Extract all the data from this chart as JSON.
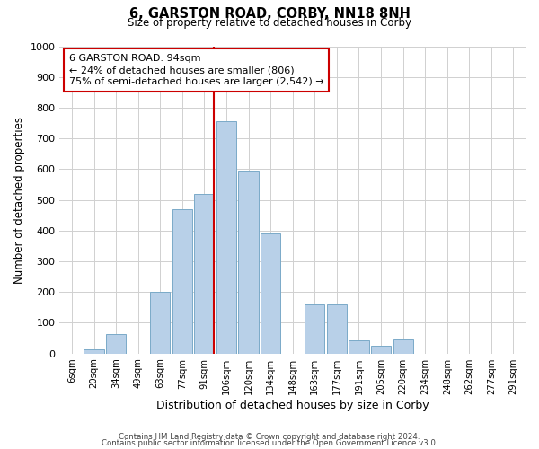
{
  "title": "6, GARSTON ROAD, CORBY, NN18 8NH",
  "subtitle": "Size of property relative to detached houses in Corby",
  "xlabel": "Distribution of detached houses by size in Corby",
  "ylabel": "Number of detached properties",
  "bar_labels": [
    "6sqm",
    "20sqm",
    "34sqm",
    "49sqm",
    "63sqm",
    "77sqm",
    "91sqm",
    "106sqm",
    "120sqm",
    "134sqm",
    "148sqm",
    "163sqm",
    "177sqm",
    "191sqm",
    "205sqm",
    "220sqm",
    "234sqm",
    "248sqm",
    "262sqm",
    "277sqm",
    "291sqm"
  ],
  "bar_values": [
    0,
    15,
    63,
    0,
    200,
    470,
    520,
    755,
    595,
    390,
    0,
    160,
    160,
    42,
    25,
    45,
    0,
    0,
    0,
    0,
    0
  ],
  "bar_color": "#b8d0e8",
  "bar_edge_color": "#7aaac8",
  "vline_color": "#cc0000",
  "annotation_line1": "6 GARSTON ROAD: 94sqm",
  "annotation_line2": "← 24% of detached houses are smaller (806)",
  "annotation_line3": "75% of semi-detached houses are larger (2,542) →",
  "annotation_box_edge": "#cc0000",
  "annotation_box_face": "#ffffff",
  "ylim": [
    0,
    1000
  ],
  "yticks": [
    0,
    100,
    200,
    300,
    400,
    500,
    600,
    700,
    800,
    900,
    1000
  ],
  "footer1": "Contains HM Land Registry data © Crown copyright and database right 2024.",
  "footer2": "Contains public sector information licensed under the Open Government Licence v3.0.",
  "background_color": "#ffffff",
  "grid_color": "#d0d0d0",
  "vline_bar_index": 6
}
